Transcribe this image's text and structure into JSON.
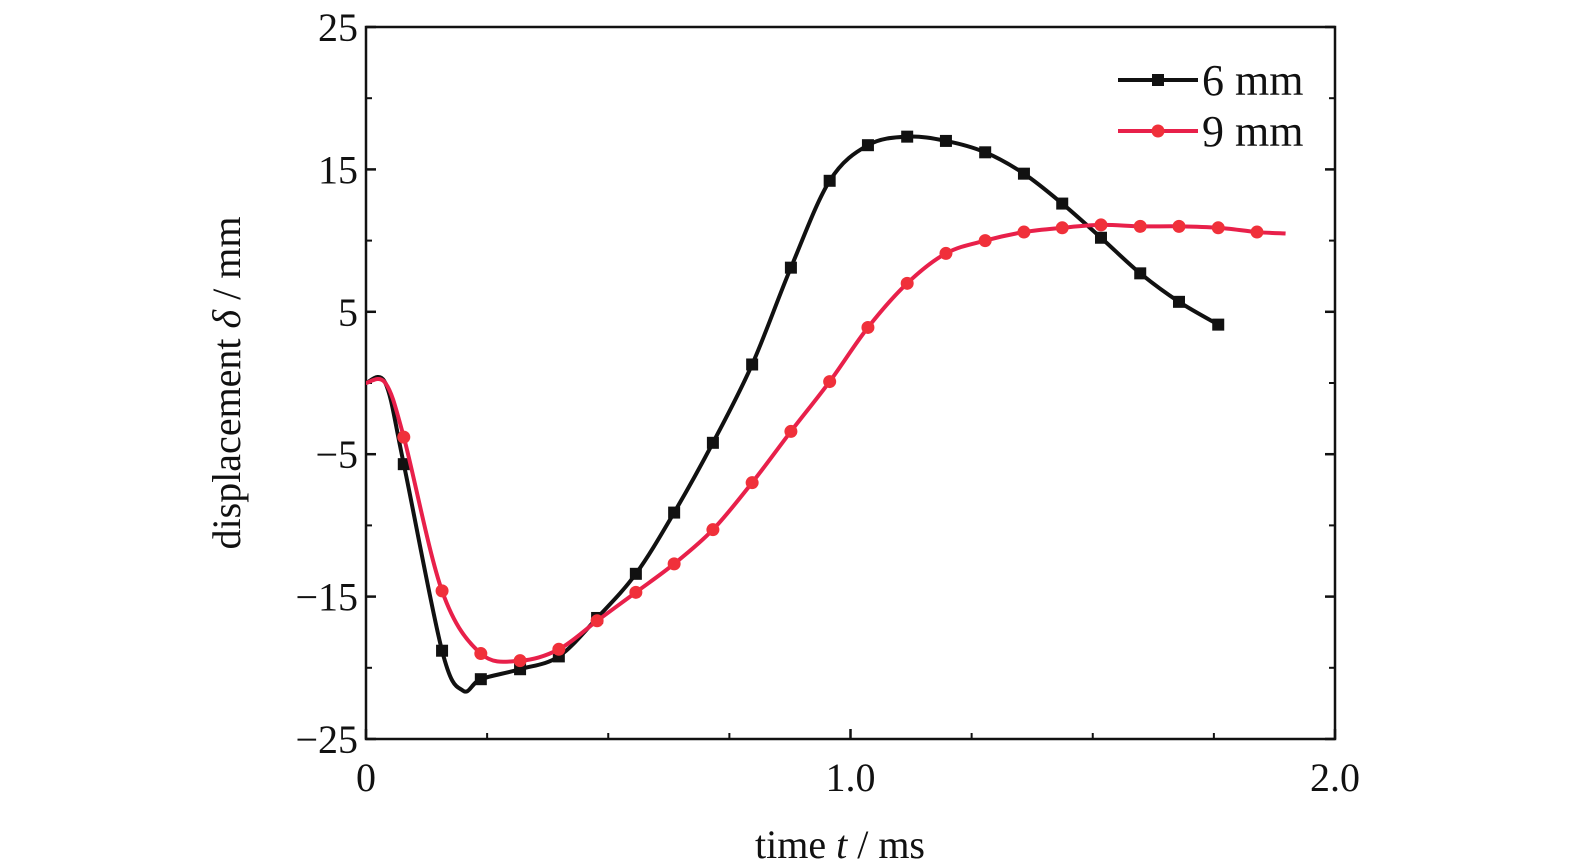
{
  "chart_data": {
    "type": "line",
    "xlabel": {
      "pre": "time ",
      "var": "t",
      "post": " / ms"
    },
    "ylabel": {
      "pre": "displacement ",
      "var": "δ",
      "post": " / mm"
    },
    "xlim": [
      0,
      2.0
    ],
    "ylim": [
      -25,
      25
    ],
    "xticks": [
      {
        "v": 0,
        "label": "0"
      },
      {
        "v": 1.0,
        "label": "1.0"
      },
      {
        "v": 2.0,
        "label": "2.0"
      }
    ],
    "xminor": [
      0.25,
      0.5,
      0.75,
      1.25,
      1.5,
      1.75
    ],
    "yticks": [
      {
        "v": 25,
        "label": "25"
      },
      {
        "v": 15,
        "label": "15"
      },
      {
        "v": 5,
        "label": "5"
      },
      {
        "v": -5,
        "label": "−5"
      },
      {
        "v": -15,
        "label": "−15"
      },
      {
        "v": -25,
        "label": "−25"
      }
    ],
    "yminor": [
      20,
      10,
      0,
      -10,
      -20
    ],
    "grid": false,
    "legend_position": "top-right",
    "series": [
      {
        "name": "6 mm",
        "color": "#111111",
        "marker": "square",
        "points": [
          [
            0,
            0,
            0
          ],
          [
            0.04,
            0,
            0
          ],
          [
            0.078,
            -5.7,
            1
          ],
          [
            0.157,
            -18.8,
            1
          ],
          [
            0.2,
            -21.6,
            0
          ],
          [
            0.237,
            -20.8,
            1
          ],
          [
            0.318,
            -20.1,
            1
          ],
          [
            0.398,
            -19.2,
            1
          ],
          [
            0.477,
            -16.5,
            1
          ],
          [
            0.557,
            -13.4,
            1
          ],
          [
            0.636,
            -9.1,
            1
          ],
          [
            0.716,
            -4.2,
            1
          ],
          [
            0.797,
            1.3,
            1
          ],
          [
            0.877,
            8.1,
            1
          ],
          [
            0.957,
            14.2,
            1
          ],
          [
            1.036,
            16.7,
            1
          ],
          [
            1.117,
            17.3,
            1
          ],
          [
            1.197,
            17.0,
            1
          ],
          [
            1.278,
            16.2,
            1
          ],
          [
            1.358,
            14.7,
            1
          ],
          [
            1.437,
            12.6,
            1
          ],
          [
            1.517,
            10.2,
            1
          ],
          [
            1.598,
            7.7,
            1
          ],
          [
            1.678,
            5.7,
            1
          ],
          [
            1.759,
            4.1,
            1
          ]
        ]
      },
      {
        "name": "9 mm",
        "color": "#e8204a",
        "marker_color": "#f0303a",
        "marker": "circle",
        "points": [
          [
            0,
            0,
            0
          ],
          [
            0.04,
            0,
            0
          ],
          [
            0.078,
            -3.8,
            1
          ],
          [
            0.157,
            -14.6,
            1
          ],
          [
            0.237,
            -19.0,
            1
          ],
          [
            0.318,
            -19.5,
            1
          ],
          [
            0.398,
            -18.7,
            1
          ],
          [
            0.477,
            -16.7,
            1
          ],
          [
            0.557,
            -14.7,
            1
          ],
          [
            0.636,
            -12.7,
            1
          ],
          [
            0.716,
            -10.3,
            1
          ],
          [
            0.797,
            -7.0,
            1
          ],
          [
            0.877,
            -3.4,
            1
          ],
          [
            0.957,
            0.1,
            1
          ],
          [
            1.036,
            3.9,
            1
          ],
          [
            1.117,
            7.0,
            1
          ],
          [
            1.197,
            9.1,
            1
          ],
          [
            1.278,
            10.0,
            1
          ],
          [
            1.358,
            10.6,
            1
          ],
          [
            1.437,
            10.9,
            1
          ],
          [
            1.517,
            11.1,
            1
          ],
          [
            1.598,
            11.0,
            1
          ],
          [
            1.678,
            11.0,
            1
          ],
          [
            1.759,
            10.9,
            1
          ],
          [
            1.839,
            10.6,
            1
          ],
          [
            1.898,
            10.5,
            0
          ]
        ]
      }
    ]
  }
}
